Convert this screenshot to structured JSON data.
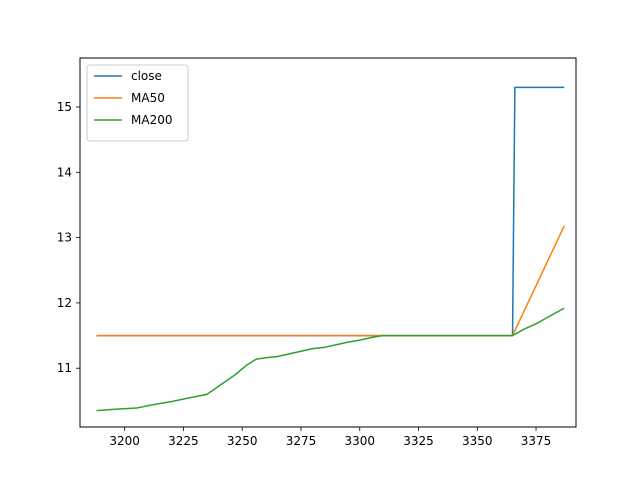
{
  "chart_data": {
    "type": "line",
    "title": "",
    "xlabel": "",
    "ylabel": "",
    "xlim": [
      3181,
      3392
    ],
    "ylim": [
      10.1,
      15.75
    ],
    "xticks": [
      3200,
      3225,
      3250,
      3275,
      3300,
      3325,
      3350,
      3375
    ],
    "yticks": [
      11,
      12,
      13,
      14,
      15
    ],
    "grid": false,
    "legend_position": "upper-left",
    "series": [
      {
        "name": "close",
        "color": "#1f77b4",
        "points": [
          [
            3188,
            11.5
          ],
          [
            3365,
            11.5
          ],
          [
            3366,
            15.3
          ],
          [
            3387,
            15.3
          ]
        ]
      },
      {
        "name": "MA50",
        "color": "#ff7f0e",
        "points": [
          [
            3188,
            11.5
          ],
          [
            3365,
            11.5
          ],
          [
            3387,
            13.18
          ]
        ]
      },
      {
        "name": "MA200",
        "color": "#2ca02c",
        "points": [
          [
            3188,
            10.35
          ],
          [
            3195,
            10.37
          ],
          [
            3205,
            10.39
          ],
          [
            3212,
            10.44
          ],
          [
            3220,
            10.49
          ],
          [
            3228,
            10.55
          ],
          [
            3235,
            10.6
          ],
          [
            3241,
            10.75
          ],
          [
            3247,
            10.9
          ],
          [
            3252,
            11.05
          ],
          [
            3256,
            11.14
          ],
          [
            3260,
            11.16
          ],
          [
            3265,
            11.18
          ],
          [
            3270,
            11.22
          ],
          [
            3275,
            11.26
          ],
          [
            3280,
            11.3
          ],
          [
            3285,
            11.32
          ],
          [
            3290,
            11.36
          ],
          [
            3295,
            11.4
          ],
          [
            3300,
            11.43
          ],
          [
            3305,
            11.47
          ],
          [
            3310,
            11.5
          ],
          [
            3365,
            11.5
          ],
          [
            3370,
            11.6
          ],
          [
            3375,
            11.68
          ],
          [
            3380,
            11.78
          ],
          [
            3387,
            11.92
          ]
        ]
      }
    ]
  }
}
